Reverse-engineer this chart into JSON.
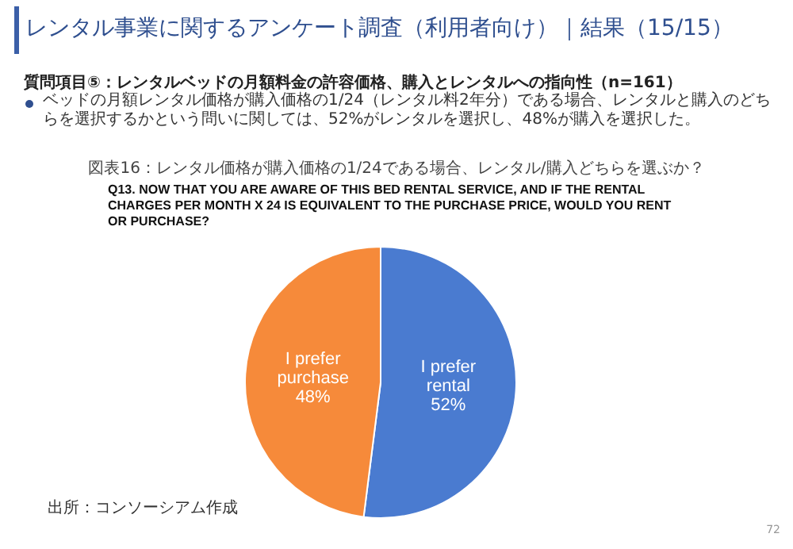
{
  "chart_data": {
    "type": "pie",
    "title": "レンタル事業に関するアンケート調査（利用者向け）｜結果（15/15）",
    "subtitle": "質問項目⑤：レンタルベッドの月額料金の許容価格、購入とレンタルへの指向性（n=161）",
    "annotations": [
      "ベッドの月額レンタル価格が購入価格の1/24（レンタル料2年分）である場合、レンタルと購入のどちらを選択するかという問いに関しては、52%がレンタルを選択し、48%が購入を選択した。",
      "図表16：レンタル価格が購入価格の1/24である場合、レンタル/購入どちらを選ぶか？",
      "Q13. NOW THAT YOU ARE AWARE OF THIS BED RENTAL SERVICE, AND IF THE RENTAL CHARGES PER MONTH X 24 IS EQUIVALENT TO THE PURCHASE PRICE, WOULD YOU RENT OR PURCHASE?",
      "出所：コンソーシアム作成",
      "72"
    ],
    "categories": [
      "I prefer rental",
      "I prefer purchase"
    ],
    "values": [
      52,
      48
    ],
    "colors": [
      "#4a7bd0",
      "#f68a3a"
    ],
    "value_labels": [
      "52%",
      "48%"
    ]
  }
}
